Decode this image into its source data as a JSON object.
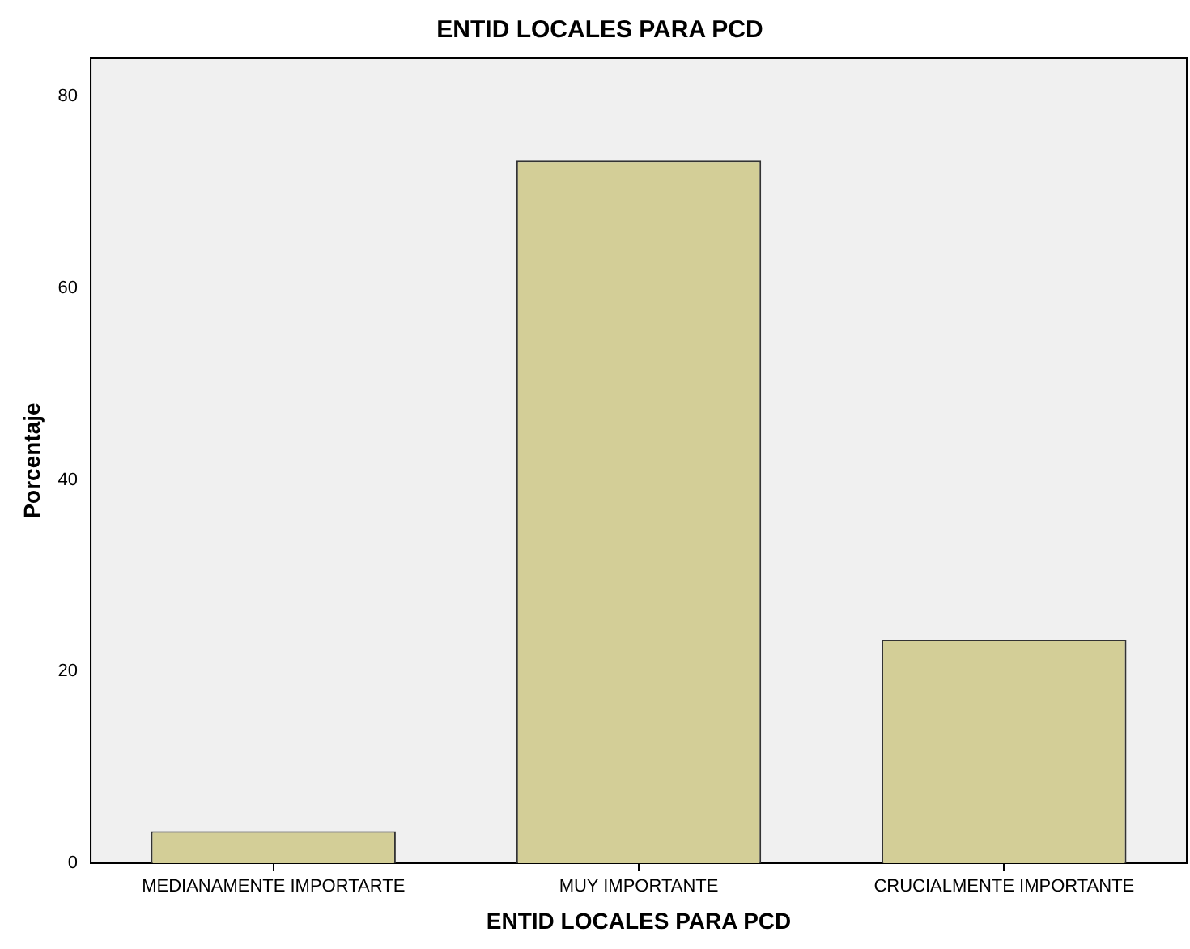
{
  "chart_data": {
    "type": "bar",
    "title": "ENTID LOCALES PARA PCD",
    "xlabel": "ENTID LOCALES PARA PCD",
    "ylabel": "Porcentaje",
    "categories": [
      "MEDIANAMENTE IMPORTARTE",
      "MUY IMPORTANTE",
      "CRUCIALMENTE IMPORTANTE"
    ],
    "values": [
      3.33,
      73.33,
      23.33
    ],
    "color": "#d3ce97",
    "ylim": [
      0,
      84
    ],
    "yticks": [
      0,
      20,
      40,
      60,
      80
    ],
    "grid": false,
    "legend": false
  }
}
